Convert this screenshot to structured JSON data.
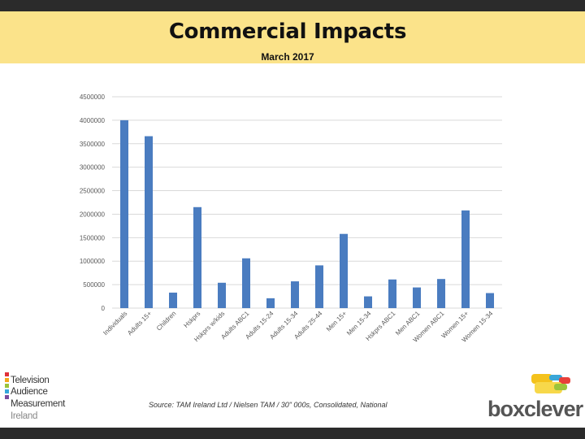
{
  "slide": {
    "title": "Commercial Impacts",
    "subtitle": "March 2017",
    "source": "Source: TAM Ireland Ltd / Nielsen TAM / 30\" 000s, Consolidated, National"
  },
  "logos": {
    "tam_lines": [
      "Television",
      "Audience",
      "Measurement",
      "Ireland"
    ],
    "boxclever_box": "box",
    "boxclever_clever": "clever"
  },
  "colors": {
    "bar": "#4a7cc0",
    "banner": "#fbe38a",
    "gridline": "#d9d9d9",
    "frame": "#2b2b2b"
  },
  "chart_data": {
    "type": "bar",
    "title": "",
    "xlabel": "",
    "ylabel": "",
    "ylim": [
      0,
      4500000
    ],
    "yticks": [
      0,
      500000,
      1000000,
      1500000,
      2000000,
      2500000,
      3000000,
      3500000,
      4000000,
      4500000
    ],
    "ytick_labels": [
      "0",
      "500000",
      "1000000",
      "1500000",
      "2000000",
      "2500000",
      "3000000",
      "3500000",
      "4000000",
      "4500000"
    ],
    "grid": true,
    "categories": [
      "Individuals",
      "Adults 15+",
      "Children",
      "Hskprs",
      "Hskprs w/kids",
      "Adults ABC1",
      "Adults 15-24",
      "Adults 15-34",
      "Adults 25-44",
      "Men 15+",
      "Men 15-34",
      "Hskprs ABC1",
      "Men ABC1",
      "Women ABC1",
      "Women 15+",
      "Women 15-34"
    ],
    "values": [
      4000000,
      3660000,
      330000,
      2150000,
      540000,
      1060000,
      210000,
      570000,
      910000,
      1580000,
      250000,
      610000,
      440000,
      620000,
      2080000,
      320000
    ]
  }
}
